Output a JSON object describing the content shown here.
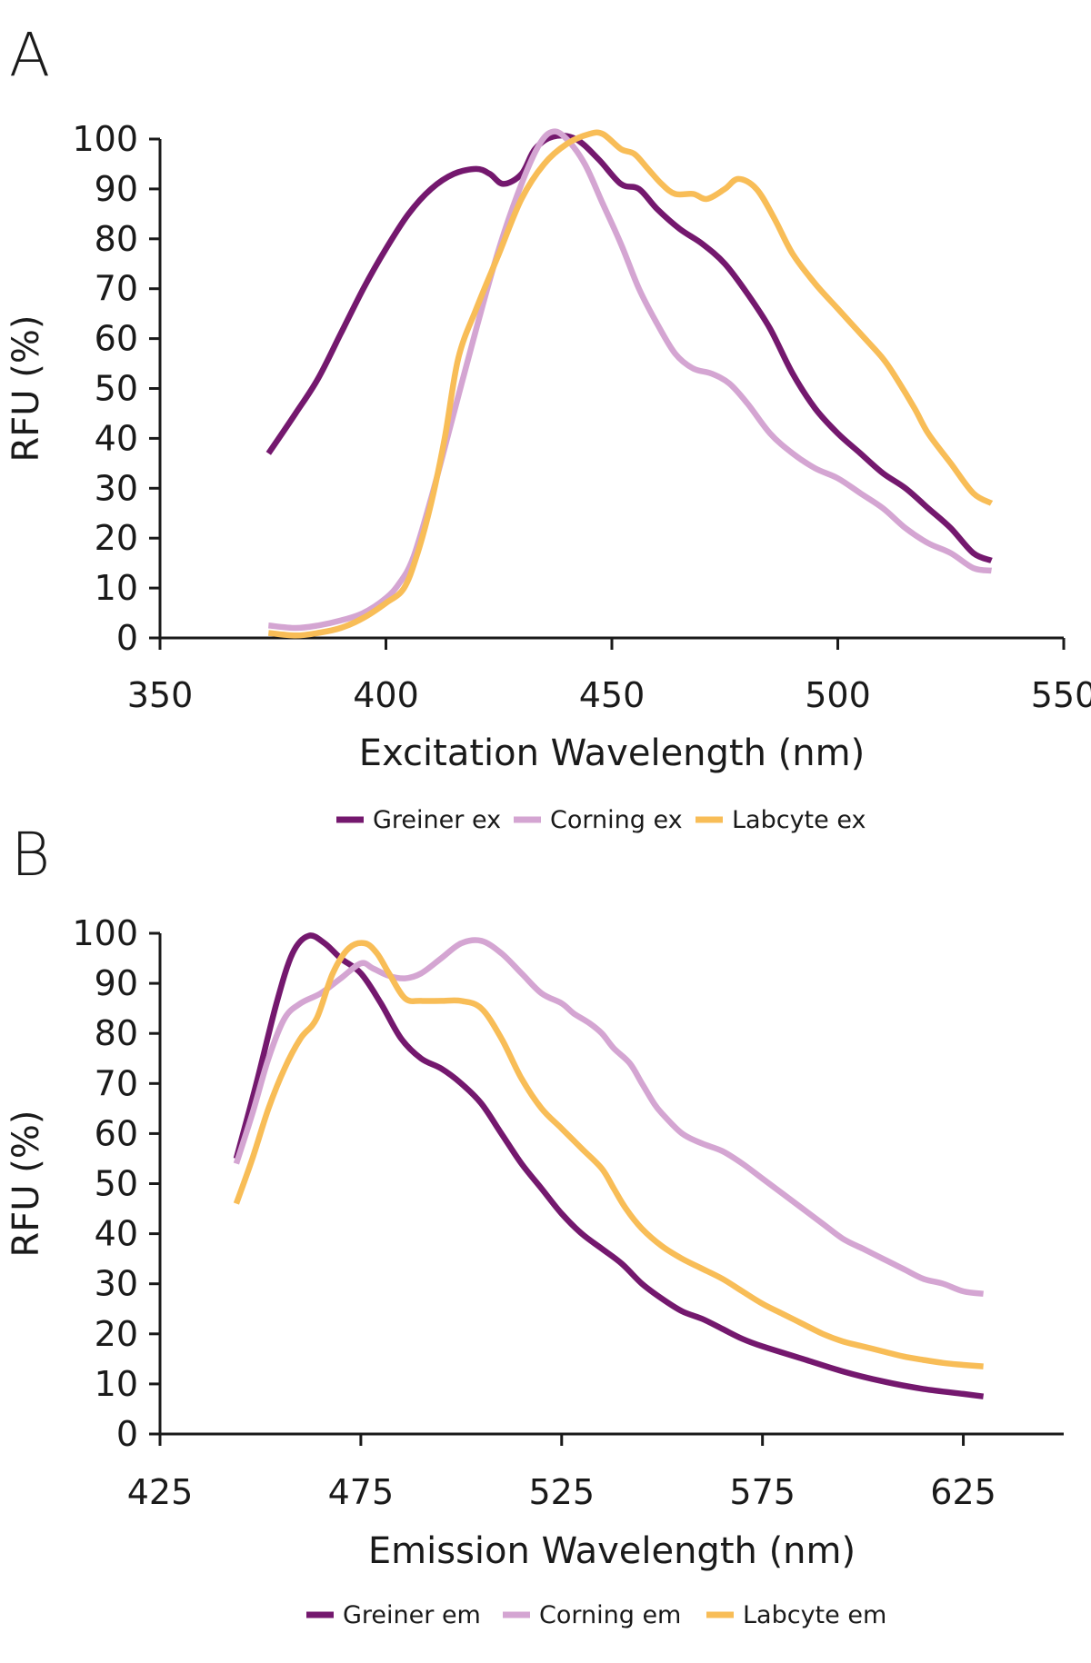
{
  "panels": [
    {
      "label": "A"
    },
    {
      "label": "B"
    }
  ],
  "chart_data": [
    {
      "type": "line",
      "panel": "A",
      "xlabel": "Excitation Wavelength (nm)",
      "ylabel": "RFU (%)",
      "xlim": [
        350,
        550
      ],
      "ylim": [
        0,
        100
      ],
      "xticks": [
        350,
        400,
        450,
        500,
        550
      ],
      "yticks": [
        0,
        10,
        20,
        30,
        40,
        50,
        60,
        70,
        80,
        90,
        100
      ],
      "grid": false,
      "legend_position": "bottom",
      "series": [
        {
          "name": "Greiner ex",
          "color": "#74186e",
          "points": [
            [
              374,
              37
            ],
            [
              380,
              45
            ],
            [
              385,
              52
            ],
            [
              390,
              61
            ],
            [
              395,
              70
            ],
            [
              400,
              78
            ],
            [
              405,
              85
            ],
            [
              410,
              90
            ],
            [
              415,
              93
            ],
            [
              420,
              94
            ],
            [
              423,
              93
            ],
            [
              426,
              91
            ],
            [
              430,
              93
            ],
            [
              433,
              98
            ],
            [
              437,
              100.5
            ],
            [
              442,
              100
            ],
            [
              447,
              96
            ],
            [
              452,
              91
            ],
            [
              456,
              90
            ],
            [
              460,
              86
            ],
            [
              465,
              82
            ],
            [
              470,
              79
            ],
            [
              475,
              75
            ],
            [
              480,
              69
            ],
            [
              485,
              62
            ],
            [
              490,
              53
            ],
            [
              495,
              46
            ],
            [
              500,
              41
            ],
            [
              505,
              37
            ],
            [
              510,
              33
            ],
            [
              515,
              30
            ],
            [
              520,
              26
            ],
            [
              525,
              22
            ],
            [
              530,
              17
            ],
            [
              534,
              15.5
            ]
          ]
        },
        {
          "name": "Corning ex",
          "color": "#d4a5d2",
          "points": [
            [
              374,
              2.5
            ],
            [
              380,
              2
            ],
            [
              385,
              2.5
            ],
            [
              390,
              3.5
            ],
            [
              395,
              5
            ],
            [
              400,
              8
            ],
            [
              403,
              11
            ],
            [
              406,
              16
            ],
            [
              410,
              28
            ],
            [
              415,
              45
            ],
            [
              420,
              62
            ],
            [
              425,
              78
            ],
            [
              430,
              91
            ],
            [
              434,
              99
            ],
            [
              437,
              101.5
            ],
            [
              440,
              100
            ],
            [
              444,
              95
            ],
            [
              448,
              87
            ],
            [
              452,
              79
            ],
            [
              456,
              70
            ],
            [
              460,
              63
            ],
            [
              464,
              57
            ],
            [
              468,
              54
            ],
            [
              472,
              53
            ],
            [
              476,
              51
            ],
            [
              480,
              47
            ],
            [
              485,
              41
            ],
            [
              490,
              37
            ],
            [
              495,
              34
            ],
            [
              500,
              32
            ],
            [
              505,
              29
            ],
            [
              510,
              26
            ],
            [
              515,
              22
            ],
            [
              520,
              19
            ],
            [
              525,
              17
            ],
            [
              530,
              14
            ],
            [
              534,
              13.5
            ]
          ]
        },
        {
          "name": "Labcyte ex",
          "color": "#f8bd57",
          "points": [
            [
              374,
              1
            ],
            [
              380,
              0.5
            ],
            [
              385,
              1
            ],
            [
              390,
              2
            ],
            [
              395,
              4
            ],
            [
              400,
              7
            ],
            [
              404,
              10
            ],
            [
              407,
              17
            ],
            [
              410,
              27
            ],
            [
              413,
              40
            ],
            [
              416,
              56
            ],
            [
              420,
              66
            ],
            [
              425,
              77
            ],
            [
              430,
              88
            ],
            [
              435,
              95
            ],
            [
              440,
              99
            ],
            [
              445,
              101
            ],
            [
              448,
              101
            ],
            [
              452,
              98
            ],
            [
              455,
              97
            ],
            [
              458,
              94
            ],
            [
              461,
              91
            ],
            [
              464,
              89
            ],
            [
              468,
              89
            ],
            [
              471,
              88
            ],
            [
              475,
              90
            ],
            [
              478,
              92
            ],
            [
              482,
              90
            ],
            [
              486,
              84
            ],
            [
              490,
              77
            ],
            [
              495,
              71
            ],
            [
              500,
              66
            ],
            [
              505,
              61
            ],
            [
              510,
              56
            ],
            [
              513,
              52
            ],
            [
              517,
              46
            ],
            [
              520,
              41
            ],
            [
              525,
              35
            ],
            [
              530,
              29
            ],
            [
              534,
              27
            ]
          ]
        }
      ]
    },
    {
      "type": "line",
      "panel": "B",
      "xlabel": "Emission Wavelength (nm)",
      "ylabel": "RFU (%)",
      "xlim": [
        425,
        650
      ],
      "ylim": [
        0,
        100
      ],
      "xticks": [
        425,
        475,
        525,
        575,
        625
      ],
      "yticks": [
        0,
        10,
        20,
        30,
        40,
        50,
        60,
        70,
        80,
        90,
        100
      ],
      "grid": false,
      "legend_position": "bottom",
      "series": [
        {
          "name": "Greiner em",
          "color": "#74186e",
          "points": [
            [
              444,
              55
            ],
            [
              449,
              70
            ],
            [
              454,
              86
            ],
            [
              458,
              96
            ],
            [
              462,
              99.5
            ],
            [
              466,
              98
            ],
            [
              470,
              95
            ],
            [
              475,
              92
            ],
            [
              480,
              86
            ],
            [
              485,
              79
            ],
            [
              490,
              75
            ],
            [
              495,
              73
            ],
            [
              500,
              70
            ],
            [
              505,
              66
            ],
            [
              510,
              60
            ],
            [
              515,
              54
            ],
            [
              520,
              49
            ],
            [
              525,
              44
            ],
            [
              530,
              40
            ],
            [
              535,
              37
            ],
            [
              540,
              34
            ],
            [
              545,
              30
            ],
            [
              550,
              27
            ],
            [
              555,
              24.5
            ],
            [
              560,
              23
            ],
            [
              565,
              21
            ],
            [
              570,
              19
            ],
            [
              575,
              17.5
            ],
            [
              585,
              15
            ],
            [
              595,
              12.5
            ],
            [
              605,
              10.5
            ],
            [
              615,
              9
            ],
            [
              625,
              8
            ],
            [
              630,
              7.5
            ]
          ]
        },
        {
          "name": "Corning em",
          "color": "#d4a5d2",
          "points": [
            [
              444,
              54
            ],
            [
              448,
              64
            ],
            [
              452,
              75
            ],
            [
              456,
              83
            ],
            [
              460,
              86
            ],
            [
              465,
              88
            ],
            [
              470,
              91
            ],
            [
              475,
              94
            ],
            [
              478,
              93
            ],
            [
              482,
              91.5
            ],
            [
              486,
              91
            ],
            [
              490,
              92
            ],
            [
              495,
              95
            ],
            [
              500,
              98
            ],
            [
              505,
              98.5
            ],
            [
              510,
              96
            ],
            [
              515,
              92
            ],
            [
              520,
              88
            ],
            [
              525,
              86
            ],
            [
              528,
              84
            ],
            [
              532,
              82
            ],
            [
              535,
              80
            ],
            [
              538,
              77
            ],
            [
              542,
              74
            ],
            [
              545,
              70
            ],
            [
              548,
              66
            ],
            [
              550,
              64
            ],
            [
              555,
              60
            ],
            [
              560,
              58
            ],
            [
              565,
              56.5
            ],
            [
              570,
              54
            ],
            [
              575,
              51
            ],
            [
              580,
              48
            ],
            [
              585,
              45
            ],
            [
              590,
              42
            ],
            [
              595,
              39
            ],
            [
              600,
              37
            ],
            [
              605,
              35
            ],
            [
              610,
              33
            ],
            [
              615,
              31
            ],
            [
              620,
              30
            ],
            [
              625,
              28.5
            ],
            [
              630,
              28
            ]
          ]
        },
        {
          "name": "Labcyte em",
          "color": "#f8bd57",
          "points": [
            [
              444,
              46
            ],
            [
              448,
              55
            ],
            [
              452,
              65
            ],
            [
              456,
              73
            ],
            [
              460,
              79
            ],
            [
              464,
              83
            ],
            [
              468,
              92
            ],
            [
              472,
              97
            ],
            [
              476,
              98
            ],
            [
              479,
              96
            ],
            [
              482,
              92
            ],
            [
              486,
              87
            ],
            [
              490,
              86.5
            ],
            [
              495,
              86.5
            ],
            [
              500,
              86.5
            ],
            [
              505,
              85
            ],
            [
              510,
              79
            ],
            [
              515,
              71
            ],
            [
              520,
              65
            ],
            [
              525,
              61
            ],
            [
              530,
              57
            ],
            [
              535,
              53
            ],
            [
              538,
              49
            ],
            [
              541,
              45
            ],
            [
              545,
              41
            ],
            [
              550,
              37.5
            ],
            [
              555,
              35
            ],
            [
              560,
              33
            ],
            [
              565,
              31
            ],
            [
              570,
              28.5
            ],
            [
              575,
              26
            ],
            [
              580,
              24
            ],
            [
              585,
              22
            ],
            [
              590,
              20
            ],
            [
              595,
              18.5
            ],
            [
              600,
              17.5
            ],
            [
              605,
              16.5
            ],
            [
              610,
              15.5
            ],
            [
              615,
              14.8
            ],
            [
              620,
              14.2
            ],
            [
              625,
              13.8
            ],
            [
              630,
              13.5
            ]
          ]
        }
      ]
    }
  ]
}
